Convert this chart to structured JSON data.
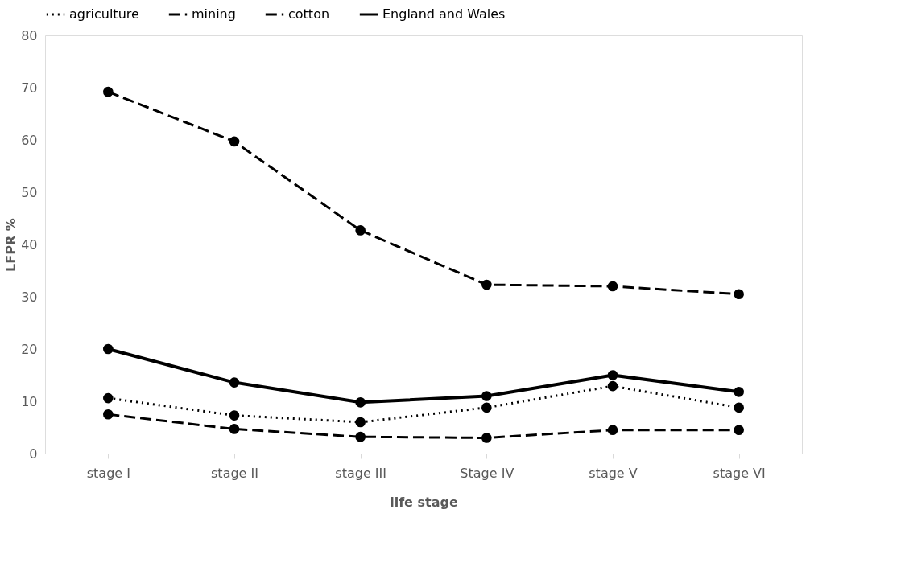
{
  "chart_data": {
    "type": "line",
    "xlabel": "life stage",
    "ylabel": "LFPR %",
    "categories": [
      "stage I",
      "stage II",
      "stage III",
      "Stage IV",
      "stage V",
      "stage VI"
    ],
    "series": [
      {
        "name": "agriculture",
        "color": "#000000",
        "line_style": "dotted",
        "values": [
          10.6,
          7.3,
          6.0,
          8.8,
          12.9,
          8.8
        ]
      },
      {
        "name": "mining",
        "color": "#000000",
        "line_style": "dashed",
        "values": [
          7.5,
          4.7,
          3.2,
          3.0,
          4.5,
          4.5
        ]
      },
      {
        "name": "cotton",
        "color": "#000000",
        "line_style": "dashed",
        "values": [
          69.2,
          59.7,
          42.7,
          32.3,
          32.0,
          30.5
        ]
      },
      {
        "name": "England and Wales",
        "color": "#000000",
        "line_style": "solid",
        "values": [
          20.0,
          13.6,
          9.8,
          11.0,
          15.0,
          11.8
        ]
      }
    ],
    "ylim": [
      0,
      80
    ],
    "yticks": [
      0,
      10,
      20,
      30,
      40,
      50,
      60,
      70,
      80
    ],
    "grid": false,
    "legend": "top",
    "marker": "circle"
  }
}
